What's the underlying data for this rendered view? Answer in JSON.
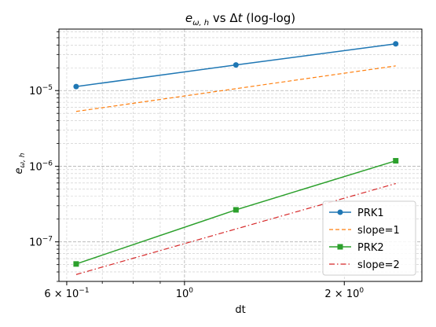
{
  "chart_data": {
    "type": "line",
    "title": "e_ω,h vs Δt (log-log)",
    "title_parts": {
      "var": "e",
      "sub": "ω, h",
      "rest": " vs Δ",
      "var2": "t",
      "suffix": " (log-log)"
    },
    "xlabel": "dt",
    "ylabel": "e_ω,h",
    "ylabel_parts": {
      "var": "e",
      "sub": "ω, h"
    },
    "x_scale": "log",
    "y_scale": "log",
    "xlim": [
      0.58,
      2.8
    ],
    "ylim": [
      3e-08,
      6.5e-05
    ],
    "x_ticks": [
      {
        "value": 0.6,
        "base": "6 × 10",
        "exp": "−1"
      },
      {
        "value": 1.0,
        "base": "10",
        "exp": "0"
      },
      {
        "value": 2.0,
        "base": "2 × 10",
        "exp": "0"
      }
    ],
    "y_ticks": [
      {
        "value": 1e-07,
        "base": "10",
        "exp": "−7"
      },
      {
        "value": 1e-06,
        "base": "10",
        "exp": "−6"
      },
      {
        "value": 1e-05,
        "base": "10",
        "exp": "−5"
      }
    ],
    "grid": true,
    "legend_position": "lower-right",
    "series": [
      {
        "name": "PRK1",
        "color": "#1f77b4",
        "style": "solid",
        "marker": "circle",
        "x": [
          0.625,
          1.25,
          2.5
        ],
        "y": [
          1.13e-05,
          2.18e-05,
          4.15e-05
        ]
      },
      {
        "name": "slope=1",
        "color": "#ff7f0e",
        "style": "dashed",
        "marker": "none",
        "x": [
          0.625,
          1.25,
          2.5
        ],
        "y": [
          5.3e-06,
          1.06e-05,
          2.12e-05
        ]
      },
      {
        "name": "PRK2",
        "color": "#2ca02c",
        "style": "solid",
        "marker": "square",
        "x": [
          0.625,
          1.25,
          2.5
        ],
        "y": [
          5.1e-08,
          2.65e-07,
          1.18e-06
        ]
      },
      {
        "name": "slope=2",
        "color": "#d62728",
        "style": "dashdot",
        "marker": "none",
        "x": [
          0.625,
          1.25,
          2.5
        ],
        "y": [
          3.7e-08,
          1.48e-07,
          5.9e-07
        ]
      }
    ]
  }
}
